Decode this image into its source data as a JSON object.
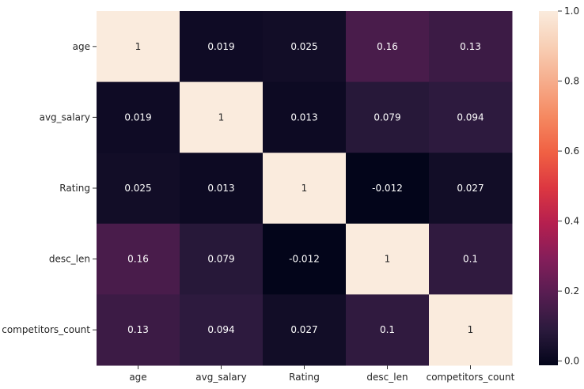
{
  "chart_data": {
    "type": "heatmap",
    "rows": [
      "age",
      "avg_salary",
      "Rating",
      "desc_len",
      "competitors_count"
    ],
    "columns": [
      "age",
      "avg_salary",
      "Rating",
      "desc_len",
      "competitors_count"
    ],
    "values": [
      [
        1,
        0.019,
        0.025,
        0.16,
        0.13
      ],
      [
        0.019,
        1,
        0.013,
        0.079,
        0.094
      ],
      [
        0.025,
        0.013,
        1,
        -0.012,
        0.027
      ],
      [
        0.16,
        0.079,
        -0.012,
        1,
        0.1
      ],
      [
        0.13,
        0.094,
        0.027,
        0.1,
        1
      ]
    ],
    "cell_labels": [
      [
        "1",
        "0.019",
        "0.025",
        "0.16",
        "0.13"
      ],
      [
        "0.019",
        "1",
        "0.013",
        "0.079",
        "0.094"
      ],
      [
        "0.025",
        "0.013",
        "1",
        "-0.012",
        "0.027"
      ],
      [
        "0.16",
        "0.079",
        "-0.012",
        "1",
        "0.1"
      ],
      [
        "0.13",
        "0.094",
        "0.027",
        "0.1",
        "1"
      ]
    ],
    "colorbar": {
      "vmin": -0.012,
      "vmax": 1.0,
      "ticks": [
        0.0,
        0.2,
        0.4,
        0.6,
        0.8,
        1.0
      ],
      "tick_labels": [
        "0.0",
        "0.2",
        "0.4",
        "0.6",
        "0.8",
        "1.0"
      ]
    },
    "colormap": "rocket",
    "colormap_stops": [
      "#03051a",
      "#2b1a3d",
      "#561d51",
      "#841e5a",
      "#b51f4f",
      "#dc3741",
      "#f06043",
      "#f58860",
      "#f6ac8b",
      "#f8cfb5",
      "#faebdd"
    ],
    "title": "",
    "xlabel": "",
    "ylabel": ""
  }
}
